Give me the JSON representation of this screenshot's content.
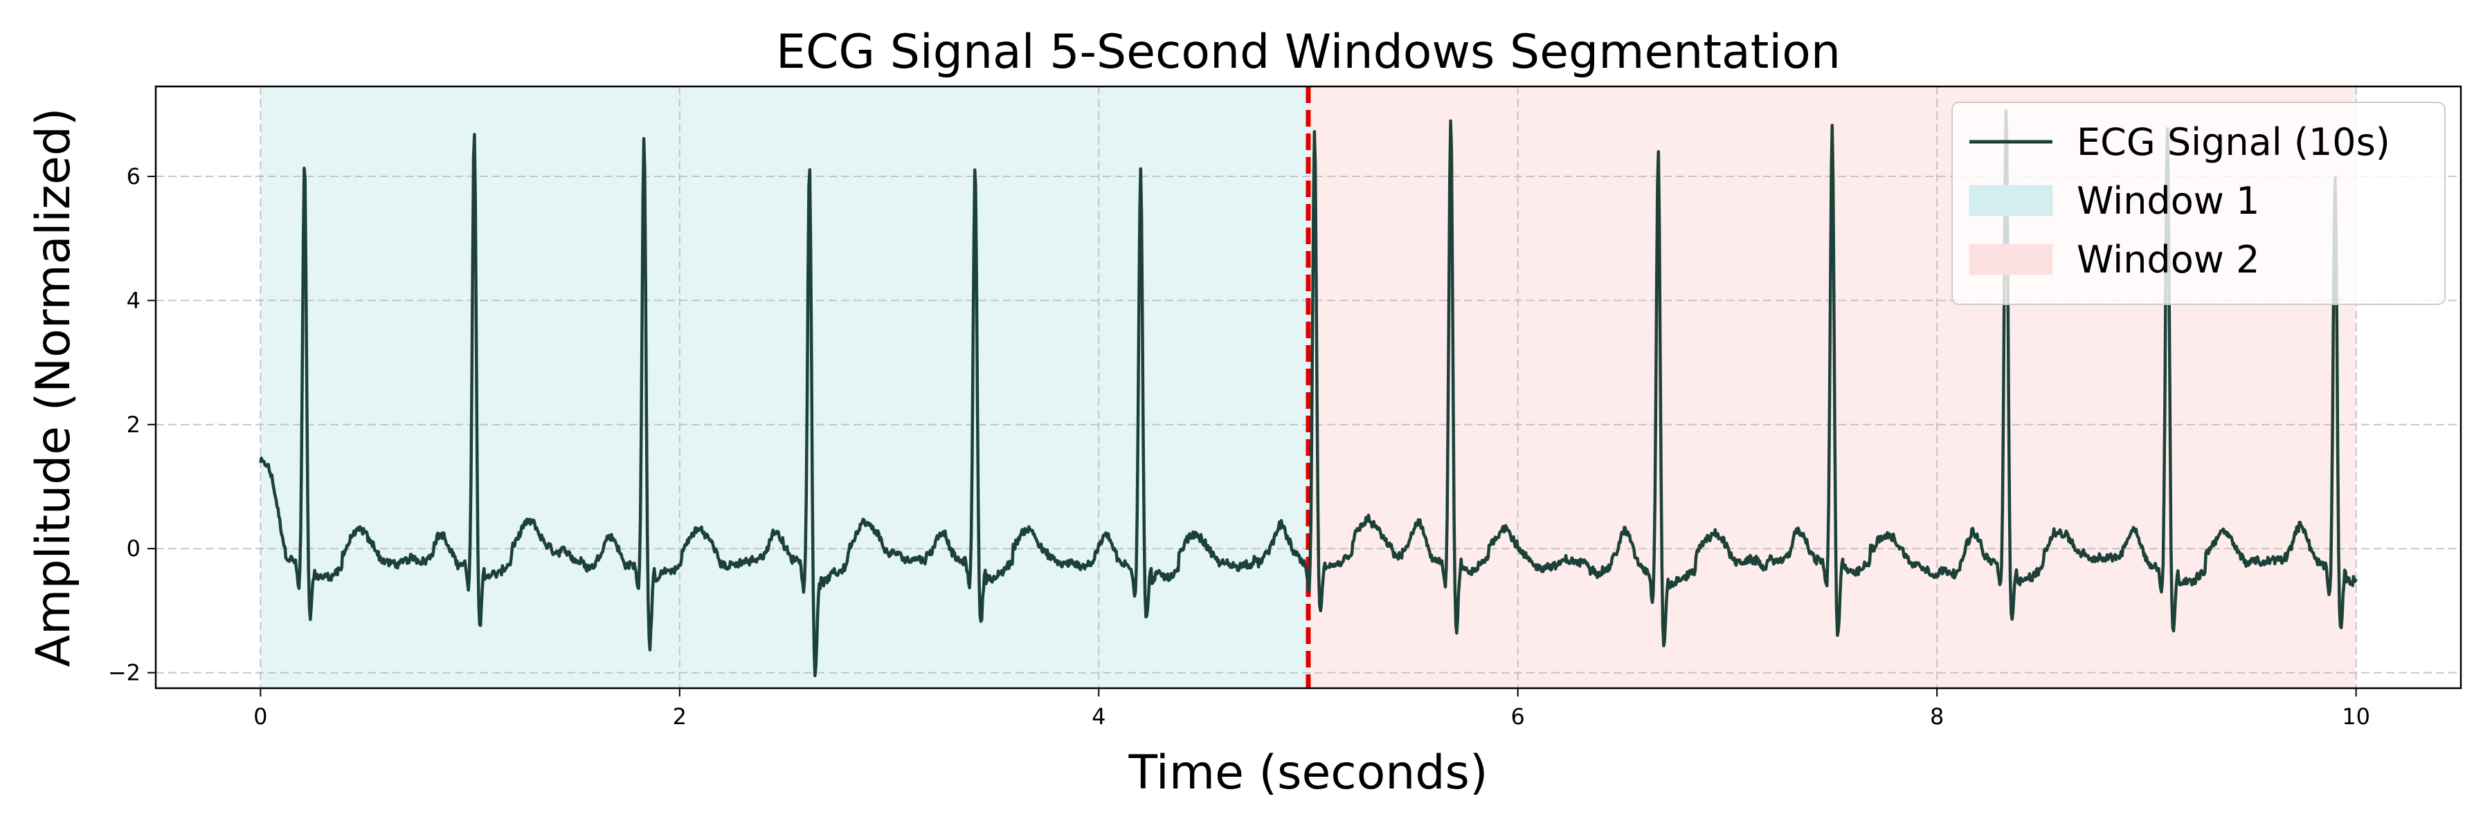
{
  "chart_data": {
    "type": "line",
    "title": "ECG Signal 5-Second Windows Segmentation",
    "xlabel": "Time (seconds)",
    "ylabel": "Amplitude (Normalized)",
    "xlim": [
      -0.5,
      10.5
    ],
    "ylim": [
      -2.25,
      7.45
    ],
    "xticks": [
      0,
      2,
      4,
      6,
      8,
      10
    ],
    "yticks": [
      -2,
      0,
      2,
      4,
      6
    ],
    "xtick_labels": [
      "0",
      "2",
      "4",
      "6",
      "8",
      "10"
    ],
    "ytick_labels": [
      "−2",
      "0",
      "2",
      "4",
      "6"
    ],
    "grid": true,
    "legend_position": "top-right",
    "series": [
      {
        "name": "ECG Signal (10s)",
        "color": "#1b4138",
        "r_peaks": [
          {
            "t": 0.21,
            "amp": 6.15,
            "q": -0.9
          },
          {
            "t": 1.02,
            "amp": 6.7,
            "q": -1.15
          },
          {
            "t": 1.83,
            "amp": 6.75,
            "q": -1.3
          },
          {
            "t": 2.62,
            "amp": 6.25,
            "q": -1.8
          },
          {
            "t": 3.41,
            "amp": 6.2,
            "q": -1.1
          },
          {
            "t": 4.2,
            "amp": 6.25,
            "q": -0.95
          },
          {
            "t": 5.03,
            "amp": 6.7,
            "q": -0.85
          },
          {
            "t": 5.68,
            "amp": 6.85,
            "q": -1.3
          },
          {
            "t": 6.67,
            "amp": 6.55,
            "q": -1.3
          },
          {
            "t": 7.5,
            "amp": 6.75,
            "q": -1.4
          },
          {
            "t": 8.33,
            "amp": 7.0,
            "q": -1.05
          },
          {
            "t": 9.1,
            "amp": 6.8,
            "q": -1.2
          },
          {
            "t": 9.9,
            "amp": 6.1,
            "q": -1.05
          }
        ],
        "start_value": 1.2,
        "end_value": -0.45
      }
    ],
    "windows": [
      {
        "name": "Window 1",
        "x_start": 0,
        "x_end": 5,
        "color": "#d3eeee"
      },
      {
        "name": "Window 2",
        "x_start": 5,
        "x_end": 10,
        "color": "#fde0e0"
      }
    ],
    "boundary": {
      "x": 5,
      "color": "#e00000"
    }
  }
}
